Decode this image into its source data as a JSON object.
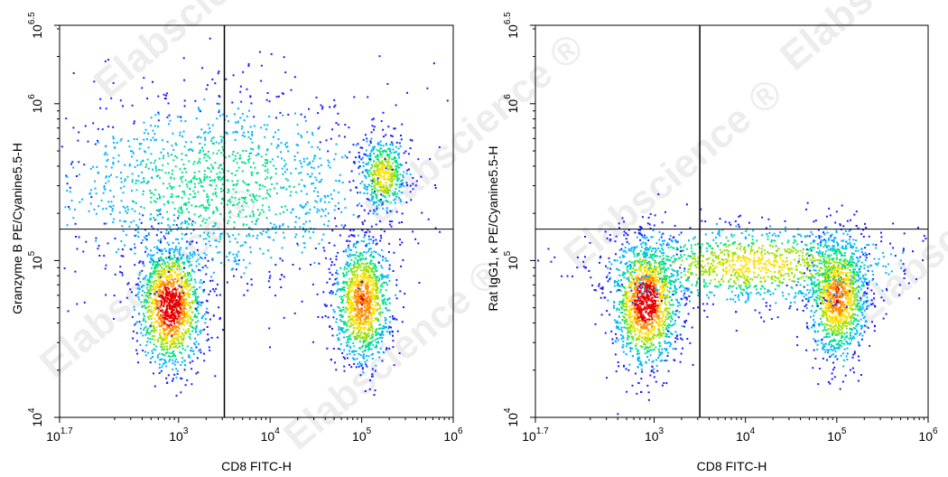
{
  "chart_data": [
    {
      "type": "scatter",
      "subtype": "flow-cytometry-density-dot-plot",
      "xlabel": "CD8 FITC-H",
      "ylabel": "Granzyme B PE/Cyanine5.5-H",
      "x_scale": "log10",
      "y_scale": "log10",
      "xlim": [
        50.12,
        1000000
      ],
      "ylim": [
        10000,
        3162278
      ],
      "x_ticks": [
        {
          "base": "10",
          "exp": "1.7"
        },
        {
          "base": "10",
          "exp": "3"
        },
        {
          "base": "10",
          "exp": "4"
        },
        {
          "base": "10",
          "exp": "5"
        },
        {
          "base": "10",
          "exp": "6"
        }
      ],
      "y_ticks": [
        {
          "base": "10",
          "exp": "4"
        },
        {
          "base": "10",
          "exp": "5"
        },
        {
          "base": "10",
          "exp": "6"
        },
        {
          "base": "10",
          "exp": "6.5"
        }
      ],
      "x_tick_values": [
        50.12,
        1000,
        10000,
        100000,
        1000000
      ],
      "y_tick_values": [
        10000,
        100000,
        1000000,
        3162278
      ],
      "quadrant_gate": {
        "x": 3162,
        "y": 158489
      },
      "populations": [
        {
          "x_center": 800,
          "y_center": 52000,
          "density": "very high"
        },
        {
          "x_center": 100000,
          "y_center": 55000,
          "density": "high"
        },
        {
          "x_center": 170000,
          "y_center": 350000,
          "density": "medium"
        },
        {
          "x_center": 2500,
          "y_center": 300000,
          "density": "low",
          "spread": "wide"
        }
      ],
      "grid": false,
      "legend": "none",
      "colormap": [
        "#1a1aff",
        "#00b4ff",
        "#00e08a",
        "#9be000",
        "#ffe100",
        "#ff8c00",
        "#e60000"
      ]
    },
    {
      "type": "scatter",
      "subtype": "flow-cytometry-density-dot-plot",
      "xlabel": "CD8 FITC-H",
      "ylabel": "Rat IgG1, κ PE/Cyanine5.5-H",
      "x_scale": "log10",
      "y_scale": "log10",
      "xlim": [
        50.12,
        1000000
      ],
      "ylim": [
        10000,
        3162278
      ],
      "x_ticks": [
        {
          "base": "10",
          "exp": "1.7"
        },
        {
          "base": "10",
          "exp": "3"
        },
        {
          "base": "10",
          "exp": "4"
        },
        {
          "base": "10",
          "exp": "5"
        },
        {
          "base": "10",
          "exp": "6"
        }
      ],
      "y_ticks": [
        {
          "base": "10",
          "exp": "4"
        },
        {
          "base": "10",
          "exp": "5"
        },
        {
          "base": "10",
          "exp": "6"
        },
        {
          "base": "10",
          "exp": "6.5"
        }
      ],
      "x_tick_values": [
        50.12,
        1000,
        10000,
        100000,
        1000000
      ],
      "y_tick_values": [
        10000,
        100000,
        1000000,
        3162278
      ],
      "quadrant_gate": {
        "x": 3162,
        "y": 158489
      },
      "populations": [
        {
          "x_center": 800,
          "y_center": 55000,
          "density": "very high"
        },
        {
          "x_center": 100000,
          "y_center": 60000,
          "density": "high"
        },
        {
          "x_center": 12000,
          "y_center": 95000,
          "density": "medium",
          "spread": "bridge"
        }
      ],
      "grid": false,
      "legend": "none",
      "colormap": [
        "#1a1aff",
        "#00b4ff",
        "#00e08a",
        "#9be000",
        "#ffe100",
        "#ff8c00",
        "#e60000"
      ]
    }
  ],
  "watermark": "Elabscience ®"
}
